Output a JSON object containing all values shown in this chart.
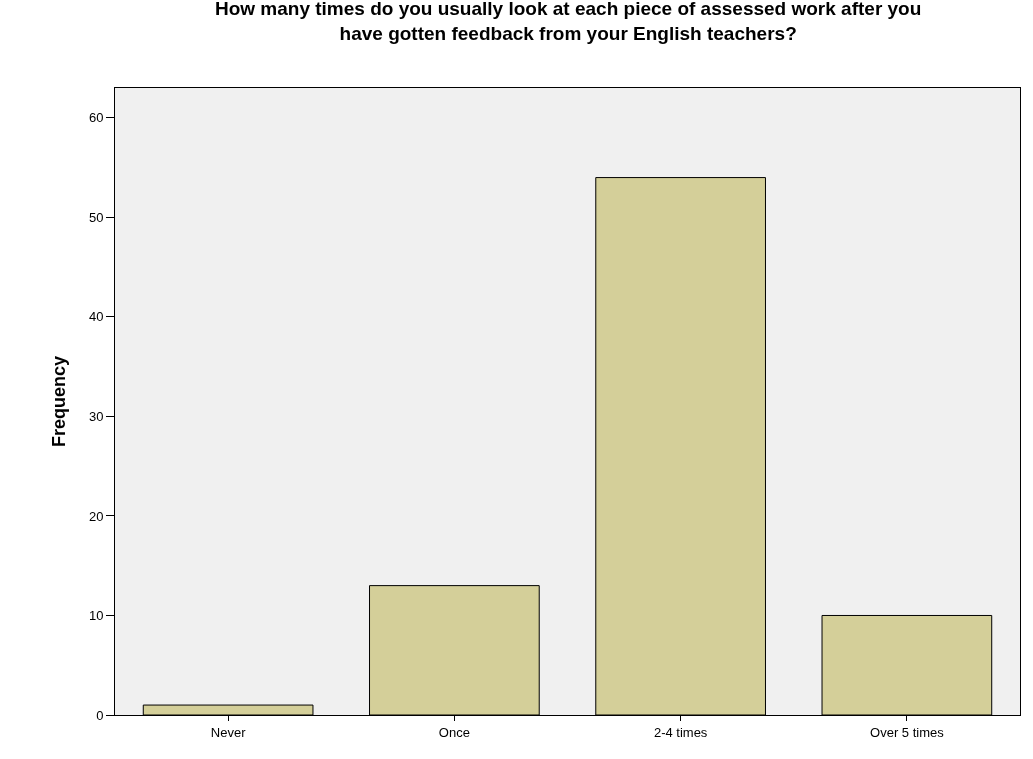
{
  "chart_data": {
    "type": "bar",
    "title": "How many times do you usually look at each piece of assessed work after you have gotten feedback from your English teachers?",
    "ylabel": "Frequency",
    "categories": [
      "Never",
      "Once",
      "2-4 times",
      "Over 5 times"
    ],
    "values": [
      1,
      13,
      54,
      10
    ],
    "color": "#d4cf99",
    "ylim": [
      0,
      63
    ],
    "yticks": [
      0,
      10,
      20,
      30,
      40,
      50,
      60
    ],
    "grid": false,
    "legend": false
  }
}
